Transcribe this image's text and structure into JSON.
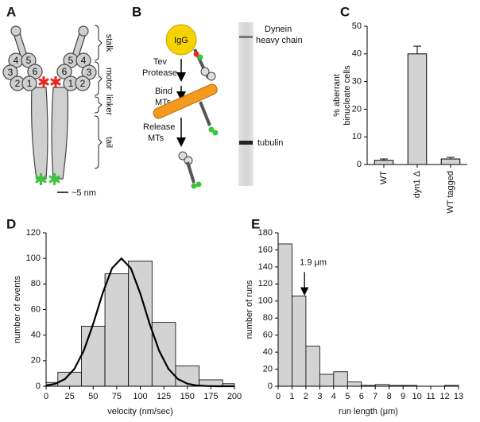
{
  "panels": {
    "A": {
      "label": "A",
      "domains": [
        "1",
        "2",
        "3",
        "4",
        "5",
        "6"
      ],
      "regions": [
        "stalk",
        "motor",
        "linker",
        "tail"
      ],
      "scale": "~5 nm"
    },
    "B": {
      "label": "B",
      "bead": "IgG",
      "steps": [
        [
          "Tev",
          "Protease"
        ],
        [
          "Bind",
          "MTs"
        ],
        [
          "Release",
          "MTs"
        ]
      ],
      "bands": [
        [
          "Dynein",
          "heavy chain"
        ],
        [
          "tubulin"
        ]
      ]
    },
    "C": {
      "label": "C"
    },
    "D": {
      "label": "D"
    },
    "E": {
      "label": "E"
    }
  },
  "chart_data": [
    {
      "type": "bar",
      "categories": [
        "WT",
        "dyn1 Δ",
        "WT tagged"
      ],
      "values": [
        1.5,
        40,
        2
      ],
      "errors": [
        0.5,
        2.8,
        0.6
      ],
      "color": "#d3d3d3",
      "ylim": [
        0,
        50
      ],
      "yticks": [
        0,
        10,
        20,
        30,
        40,
        50
      ],
      "y_label": [
        "% aberrant",
        "binucleate cells"
      ]
    },
    {
      "type": "histogram",
      "bins": [
        0,
        12.5,
        37.5,
        62.5,
        87.5,
        112.5,
        137.5,
        162.5,
        187.5,
        200
      ],
      "values": [
        3,
        11,
        47,
        88,
        98,
        50,
        16,
        5,
        2
      ],
      "color": "#d3d3d3",
      "xlim": [
        0,
        200
      ],
      "xticks": [
        0,
        25,
        50,
        75,
        100,
        125,
        150,
        175,
        200
      ],
      "ylim": [
        0,
        120
      ],
      "yticks": [
        0,
        20,
        40,
        60,
        80,
        100,
        120
      ],
      "x_label": "velocity (nm/sec)",
      "y_label": "number of events",
      "overlay": {
        "type": "line",
        "color": "#000000",
        "x": [
          0,
          10,
          20,
          30,
          40,
          50,
          60,
          70,
          80,
          90,
          100,
          110,
          120,
          130,
          140,
          150,
          160,
          170,
          180,
          190,
          200
        ],
        "values": [
          0.6,
          2.0,
          5.6,
          13.5,
          27.8,
          48.7,
          72.6,
          92.3,
          100,
          92.3,
          72.6,
          48.7,
          27.8,
          13.5,
          5.6,
          2.0,
          0.6,
          0.2,
          0,
          0,
          0
        ]
      }
    },
    {
      "type": "histogram",
      "bins": [
        0,
        1,
        2,
        3,
        4,
        5,
        6,
        7,
        8,
        9,
        10,
        11,
        12,
        13
      ],
      "values": [
        167,
        106,
        47,
        14,
        17,
        5,
        1,
        2,
        1,
        1,
        0,
        0,
        1
      ],
      "color": "#d3d3d3",
      "xlim": [
        0,
        13
      ],
      "xticks": [
        0,
        1,
        2,
        3,
        4,
        5,
        6,
        7,
        8,
        9,
        10,
        11,
        12,
        13
      ],
      "ylim": [
        0,
        180
      ],
      "yticks": [
        0,
        20,
        40,
        60,
        80,
        100,
        120,
        140,
        160,
        180
      ],
      "x_label": "run length (μm)",
      "y_label": "number of runs",
      "annotation": {
        "text": "1.9 μm",
        "x": 1.9
      }
    }
  ]
}
